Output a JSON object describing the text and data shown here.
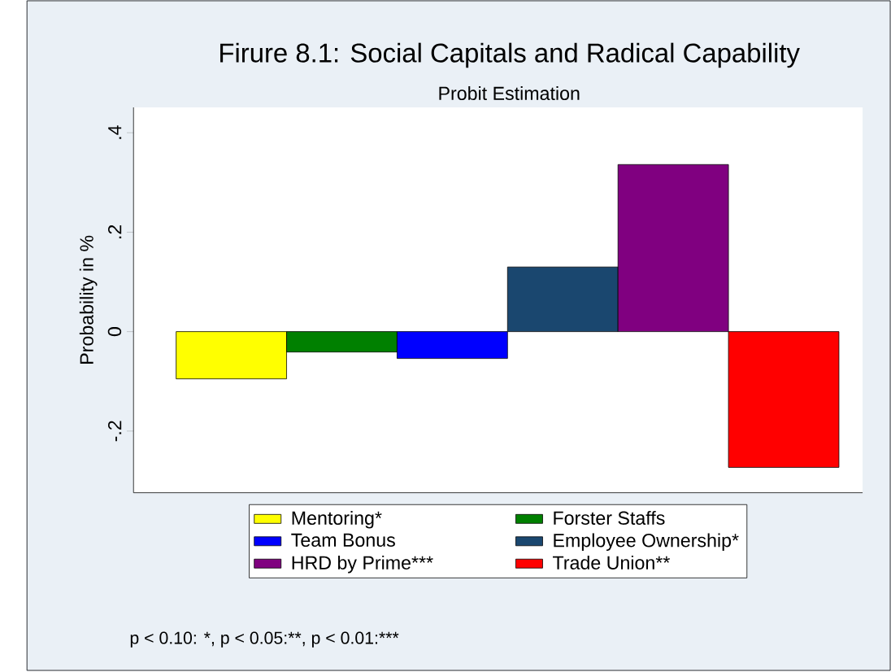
{
  "chart_data": {
    "type": "bar",
    "title": "Firure 8.1: Social Capitals and Radical Capability",
    "subtitle": "Probit Estimation",
    "ylabel": "Probability in %",
    "categories": [
      null,
      null,
      null,
      null,
      null,
      null
    ],
    "series": [
      {
        "name": "Mentoring*",
        "color": "#ffff00",
        "values": [
          -0.095,
          null,
          null,
          null,
          null,
          null
        ]
      },
      {
        "name": "Forster Staffs",
        "color": "#008000",
        "values": [
          null,
          -0.041,
          null,
          null,
          null,
          null
        ]
      },
      {
        "name": "Team Bonus",
        "color": "#0000ff",
        "values": [
          null,
          null,
          -0.054,
          null,
          null,
          null
        ]
      },
      {
        "name": "Employee Ownership*",
        "color": "#1a476f",
        "values": [
          null,
          null,
          null,
          0.13,
          null,
          null
        ]
      },
      {
        "name": "HRD by Prime***",
        "color": "#800080",
        "values": [
          null,
          null,
          null,
          null,
          0.336,
          null
        ]
      },
      {
        "name": "Trade Union**",
        "color": "#ff0000",
        "values": [
          null,
          null,
          null,
          null,
          null,
          -0.273
        ]
      }
    ],
    "ylim": [
      -0.324,
      0.451
    ],
    "yticks": [
      {
        "value": -0.2,
        "label": "-.2"
      },
      {
        "value": 0,
        "label": "0"
      },
      {
        "value": 0.2,
        "label": ".2"
      },
      {
        "value": 0.4,
        "label": ".4"
      }
    ],
    "tick_labels": "y",
    "legend": "bottom",
    "annotations": [
      "p < 0.10: *,",
      "p < 0.05:**,",
      "p < 0.01:***"
    ]
  }
}
